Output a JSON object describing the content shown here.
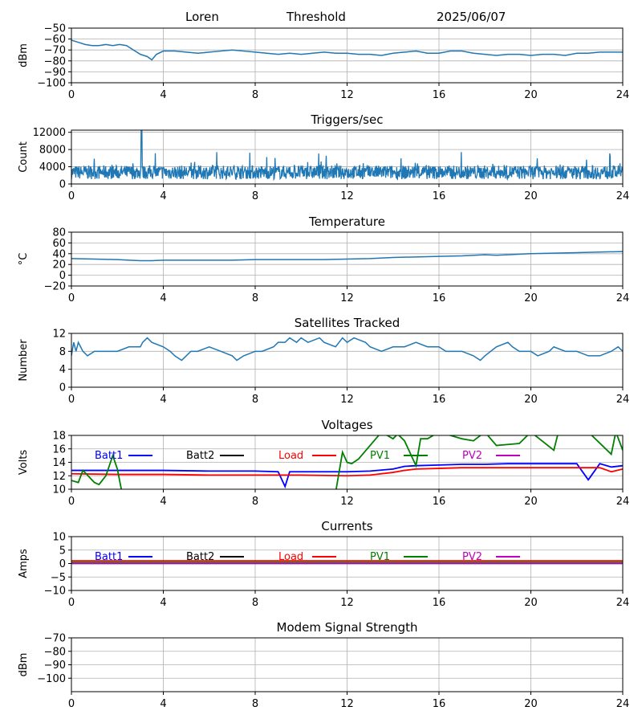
{
  "header": {
    "station": "Loren",
    "mode": "Threshold",
    "date": "2025/06/07"
  },
  "colors": {
    "trace": "#1f77b4",
    "batt1": "#0000ff",
    "batt2": "#000000",
    "load": "#ff0000",
    "pv1": "#008000",
    "pv2": "#bf00bf",
    "grid": "#b0b0b0"
  },
  "chart_data": [
    {
      "id": "signal",
      "type": "line",
      "title": "",
      "ylabel": "dBm",
      "xlim": [
        0,
        24
      ],
      "xticks": [
        "0",
        "4",
        "8",
        "12",
        "16",
        "20",
        "24"
      ],
      "ylim": [
        -100,
        -50
      ],
      "yticks": [
        "−100",
        "−90",
        "−80",
        "−70",
        "−60",
        "−50"
      ],
      "ytick_values": [
        -100,
        -90,
        -80,
        -70,
        -60,
        -50
      ],
      "grid": true,
      "series": [
        {
          "x": [
            0,
            0.3,
            0.6,
            0.9,
            1.2,
            1.5,
            1.8,
            2.1,
            2.4,
            2.7,
            3.0,
            3.3,
            3.5,
            3.7,
            4,
            4.5,
            5,
            5.5,
            6,
            6.5,
            7,
            7.5,
            8,
            8.5,
            9,
            9.5,
            10,
            10.5,
            11,
            11.5,
            12,
            12.5,
            13,
            13.5,
            14,
            14.5,
            15,
            15.5,
            16,
            16.5,
            17,
            17.5,
            18,
            18.5,
            19,
            19.5,
            20,
            20.5,
            21,
            21.5,
            22,
            22.5,
            23,
            23.5,
            24
          ],
          "y": [
            -61,
            -63,
            -65,
            -66,
            -66,
            -65,
            -66,
            -65,
            -66,
            -70,
            -74,
            -76,
            -79,
            -74,
            -71,
            -71,
            -72,
            -73,
            -72,
            -71,
            -70,
            -71,
            -72,
            -73,
            -74,
            -73,
            -74,
            -73,
            -72,
            -73,
            -73,
            -74,
            -74,
            -75,
            -73,
            -72,
            -71,
            -73,
            -73,
            -71,
            -71,
            -73,
            -74,
            -75,
            -74,
            -74,
            -75,
            -74,
            -74,
            -75,
            -73,
            -73,
            -72,
            -72,
            -72
          ]
        }
      ]
    },
    {
      "id": "triggers",
      "type": "line",
      "title": "Triggers/sec",
      "ylabel": "Count",
      "xlim": [
        0,
        24
      ],
      "xticks": [
        "0",
        "4",
        "8",
        "12",
        "16",
        "20",
        "24"
      ],
      "ylim": [
        0,
        12500
      ],
      "yticks": [
        "0",
        "4000",
        "8000",
        "12000"
      ],
      "ytick_values": [
        0,
        4000,
        8000,
        12000
      ],
      "grid": true,
      "baseline": 2700,
      "spike": {
        "x": 3.05,
        "y": 12500
      },
      "series": [
        {
          "x": [],
          "y": []
        }
      ]
    },
    {
      "id": "temperature",
      "type": "line",
      "title": "Temperature",
      "ylabel": "°C",
      "xlim": [
        0,
        24
      ],
      "xticks": [
        "0",
        "4",
        "8",
        "12",
        "16",
        "20",
        "24"
      ],
      "ylim": [
        -20,
        80
      ],
      "yticks": [
        "−20",
        "0",
        "20",
        "40",
        "60",
        "80"
      ],
      "ytick_values": [
        -20,
        0,
        20,
        40,
        60,
        80
      ],
      "grid": true,
      "series": [
        {
          "x": [
            0,
            1,
            2,
            2.5,
            3,
            3.5,
            4,
            5,
            6,
            7,
            8,
            9,
            10,
            11,
            12,
            13,
            14,
            15,
            16,
            17,
            18,
            18.5,
            19,
            20,
            21,
            22,
            23,
            24
          ],
          "y": [
            31,
            30,
            29,
            28,
            27,
            27,
            28,
            28,
            28,
            28,
            29,
            29,
            29,
            29,
            30,
            31,
            33,
            34,
            35,
            36,
            38,
            37,
            38,
            40,
            41,
            42,
            43,
            44
          ]
        }
      ]
    },
    {
      "id": "satellites",
      "type": "line",
      "title": "Satellites Tracked",
      "ylabel": "Number",
      "xlim": [
        0,
        24
      ],
      "xticks": [
        "0",
        "4",
        "8",
        "12",
        "16",
        "20",
        "24"
      ],
      "ylim": [
        0,
        12
      ],
      "yticks": [
        "0",
        "4",
        "8",
        "12"
      ],
      "ytick_values": [
        0,
        4,
        8,
        12
      ],
      "grid": true,
      "series": [
        {
          "x": [
            0,
            0.1,
            0.2,
            0.3,
            0.4,
            0.5,
            0.7,
            1.0,
            1.5,
            2.0,
            2.5,
            3.0,
            3.1,
            3.3,
            3.5,
            4.0,
            4.3,
            4.5,
            4.8,
            5.0,
            5.2,
            5.5,
            6.0,
            6.5,
            7.0,
            7.2,
            7.5,
            8.0,
            8.3,
            8.8,
            9.0,
            9.3,
            9.5,
            9.8,
            10.0,
            10.3,
            10.8,
            11.0,
            11.5,
            11.8,
            12.0,
            12.3,
            12.8,
            13.0,
            13.5,
            14.0,
            14.5,
            15.0,
            15.5,
            16.0,
            16.3,
            17.0,
            17.5,
            17.8,
            18.0,
            18.5,
            19.0,
            19.2,
            19.5,
            20.0,
            20.3,
            20.8,
            21.0,
            21.5,
            22.0,
            22.5,
            23.0,
            23.5,
            23.8,
            24.0
          ],
          "y": [
            7,
            10,
            8,
            10,
            9,
            8,
            7,
            8,
            8,
            8,
            9,
            9,
            10,
            11,
            10,
            9,
            8,
            7,
            6,
            7,
            8,
            8,
            9,
            8,
            7,
            6,
            7,
            8,
            8,
            9,
            10,
            10,
            11,
            10,
            11,
            10,
            11,
            10,
            9,
            11,
            10,
            11,
            10,
            9,
            8,
            9,
            9,
            10,
            9,
            9,
            8,
            8,
            7,
            6,
            7,
            9,
            10,
            9,
            8,
            8,
            7,
            8,
            9,
            8,
            8,
            7,
            7,
            8,
            9,
            8
          ]
        }
      ]
    },
    {
      "id": "voltages",
      "type": "line",
      "title": "Voltages",
      "ylabel": "Volts",
      "xlim": [
        0,
        24
      ],
      "xticks": [
        "0",
        "4",
        "8",
        "12",
        "16",
        "20",
        "24"
      ],
      "ylim": [
        10,
        18
      ],
      "yticks": [
        "10",
        "12",
        "14",
        "16",
        "18"
      ],
      "ytick_values": [
        10,
        12,
        14,
        16,
        18
      ],
      "grid": true,
      "legend": "top",
      "series": [
        {
          "name": "Batt1",
          "x": [
            0,
            2,
            4,
            6,
            8,
            9,
            9.3,
            9.5,
            10,
            12,
            13,
            14,
            14.5,
            15,
            16,
            17,
            18,
            19,
            20,
            21,
            22,
            22.5,
            23,
            23.5,
            24
          ],
          "y": [
            12.8,
            12.8,
            12.8,
            12.7,
            12.7,
            12.6,
            10.4,
            12.6,
            12.6,
            12.6,
            12.7,
            13.0,
            13.4,
            13.5,
            13.6,
            13.7,
            13.7,
            13.8,
            13.8,
            13.8,
            13.8,
            11.4,
            13.8,
            13.3,
            13.5
          ]
        },
        {
          "name": "Batt2",
          "x": [],
          "y": []
        },
        {
          "name": "Load",
          "x": [
            0,
            2,
            4,
            6,
            8,
            10,
            12,
            13,
            14,
            14.5,
            15,
            16,
            17,
            18,
            19,
            20,
            21,
            22,
            23,
            23.5,
            24
          ],
          "y": [
            12.3,
            12.2,
            12.2,
            12.1,
            12.1,
            12.1,
            12.0,
            12.1,
            12.5,
            12.8,
            13.0,
            13.1,
            13.2,
            13.2,
            13.2,
            13.2,
            13.2,
            13.2,
            13.2,
            12.6,
            13.0
          ]
        },
        {
          "name": "PV1",
          "x": [
            0,
            0.3,
            0.5,
            1.0,
            1.2,
            1.5,
            1.8,
            2.0,
            2.2,
            11.5,
            11.8,
            12.0,
            12.2,
            12.5,
            13.0,
            13.5,
            14.0,
            14.2,
            14.5,
            15.0,
            15.2,
            15.5,
            16.0,
            17.0,
            17.5,
            18.0,
            18.5,
            19.5,
            20.0,
            21.0,
            21.2,
            21.5,
            22.5,
            23.5,
            23.7,
            24.0
          ],
          "y": [
            11.3,
            11.0,
            12.8,
            11.0,
            10.7,
            12.0,
            15.0,
            13.0,
            9.5,
            9.5,
            15.5,
            14.0,
            13.8,
            14.5,
            16.5,
            18.5,
            17.5,
            18.2,
            17.2,
            13.5,
            17.5,
            17.5,
            18.5,
            17.5,
            17.2,
            18.5,
            16.5,
            16.8,
            18.5,
            15.8,
            18.5,
            18.5,
            18.5,
            15.2,
            18.5,
            15.8
          ]
        },
        {
          "name": "PV2",
          "x": [],
          "y": []
        }
      ]
    },
    {
      "id": "currents",
      "type": "line",
      "title": "Currents",
      "ylabel": "Amps",
      "xlim": [
        0,
        24
      ],
      "xticks": [
        "0",
        "4",
        "8",
        "12",
        "16",
        "20",
        "24"
      ],
      "ylim": [
        -10,
        10
      ],
      "yticks": [
        "−10",
        "−5",
        "0",
        "5",
        "10"
      ],
      "ytick_values": [
        -10,
        -5,
        0,
        5,
        10
      ],
      "grid": true,
      "legend": "top",
      "series": [
        {
          "name": "Batt1",
          "x": [
            0,
            24
          ],
          "y": [
            0.2,
            0.2
          ]
        },
        {
          "name": "Batt2",
          "x": [
            0,
            24
          ],
          "y": [
            0.3,
            0.3
          ]
        },
        {
          "name": "Load",
          "x": [
            0,
            24
          ],
          "y": [
            1.0,
            1.0
          ]
        },
        {
          "name": "PV1",
          "x": [
            0,
            24
          ],
          "y": [
            0.4,
            0.4
          ]
        },
        {
          "name": "PV2",
          "x": [
            0,
            24
          ],
          "y": [
            0.0,
            0.0
          ]
        }
      ]
    },
    {
      "id": "modem",
      "type": "line",
      "title": "Modem Signal Strength",
      "ylabel": "dBm",
      "xlim": [
        0,
        24
      ],
      "xticks": [
        "0",
        "4",
        "8",
        "12",
        "16",
        "20",
        "24"
      ],
      "ylim": [
        -110,
        -70
      ],
      "yticks": [
        "−100",
        "−90",
        "−80",
        "−70"
      ],
      "ytick_values": [
        -100,
        -90,
        -80,
        -70
      ],
      "grid": true,
      "series": []
    }
  ]
}
